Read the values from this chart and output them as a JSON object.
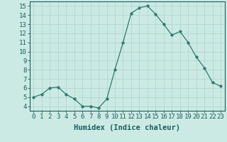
{
  "x": [
    0,
    1,
    2,
    3,
    4,
    5,
    6,
    7,
    8,
    9,
    10,
    11,
    12,
    13,
    14,
    15,
    16,
    17,
    18,
    19,
    20,
    21,
    22,
    23
  ],
  "y": [
    5.0,
    5.3,
    6.0,
    6.1,
    5.3,
    4.8,
    4.0,
    4.0,
    3.8,
    4.8,
    8.0,
    11.0,
    14.2,
    14.8,
    15.0,
    14.1,
    13.0,
    11.8,
    12.2,
    11.0,
    9.4,
    8.2,
    6.6,
    6.2
  ],
  "line_color": "#2d7a6e",
  "marker": "o",
  "marker_size": 2.5,
  "bg_color": "#cceae4",
  "grid_color": "#b0d8d0",
  "xlabel": "Humidex (Indice chaleur)",
  "ylim": [
    3.5,
    15.5
  ],
  "xlim": [
    -0.5,
    23.5
  ],
  "yticks": [
    4,
    5,
    6,
    7,
    8,
    9,
    10,
    11,
    12,
    13,
    14,
    15
  ],
  "xticks": [
    0,
    1,
    2,
    3,
    4,
    5,
    6,
    7,
    8,
    9,
    10,
    11,
    12,
    13,
    14,
    15,
    16,
    17,
    18,
    19,
    20,
    21,
    22,
    23
  ],
  "tick_color": "#1a5f5f",
  "label_fontsize": 6.5,
  "xlabel_fontsize": 7.5
}
